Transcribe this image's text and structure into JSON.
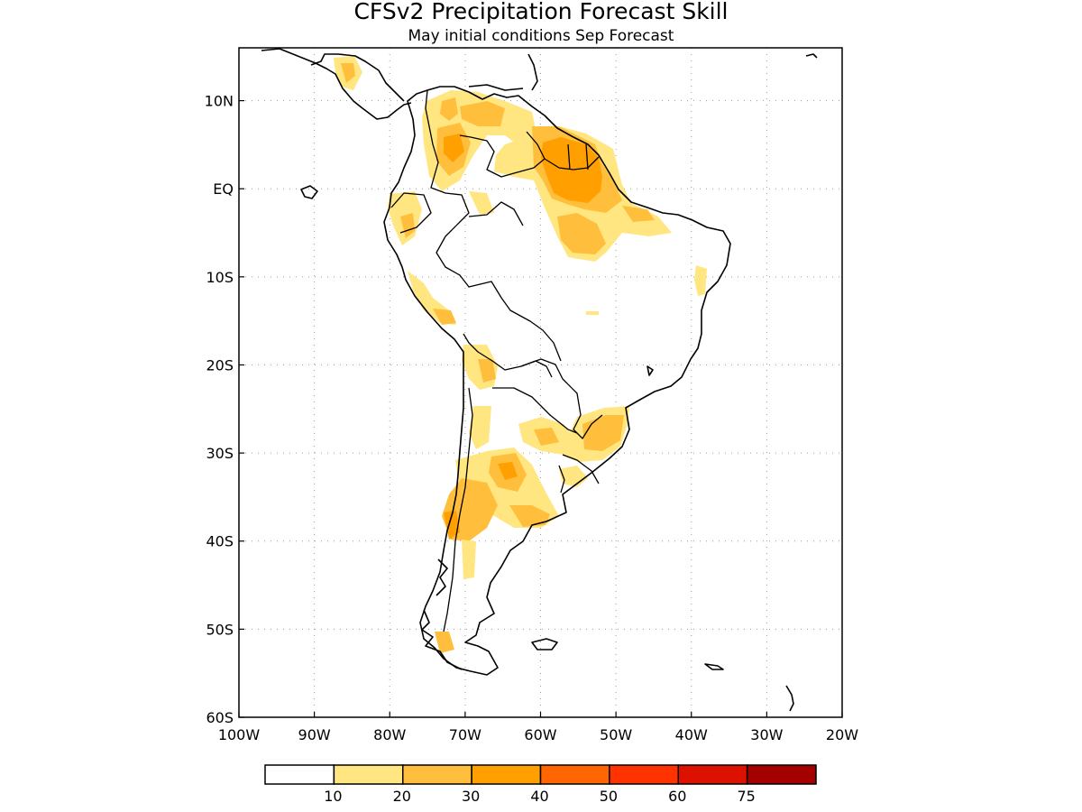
{
  "title": "CFSv2 Precipitation Forecast Skill",
  "subtitle": "May initial conditions  Sep Forecast",
  "map": {
    "lon_range": [
      -100,
      -20
    ],
    "lat_range": [
      -60,
      16
    ],
    "lat_ticks": [
      {
        "value": 10,
        "label": "10N"
      },
      {
        "value": 0,
        "label": "EQ"
      },
      {
        "value": -10,
        "label": "10S"
      },
      {
        "value": -20,
        "label": "20S"
      },
      {
        "value": -30,
        "label": "30S"
      },
      {
        "value": -40,
        "label": "40S"
      },
      {
        "value": -50,
        "label": "50S"
      },
      {
        "value": -60,
        "label": "60S"
      }
    ],
    "lon_ticks": [
      {
        "value": -100,
        "label": "100W"
      },
      {
        "value": -90,
        "label": "90W"
      },
      {
        "value": -80,
        "label": "80W"
      },
      {
        "value": -70,
        "label": "70W"
      },
      {
        "value": -60,
        "label": "60W"
      },
      {
        "value": -50,
        "label": "50W"
      },
      {
        "value": -40,
        "label": "40W"
      },
      {
        "value": -30,
        "label": "30W"
      },
      {
        "value": -20,
        "label": "20W"
      }
    ]
  },
  "colorbar": {
    "colors": [
      "#ffffff",
      "#ffe680",
      "#ffbe3c",
      "#ff9f00",
      "#ff6600",
      "#ff3300",
      "#dd1100",
      "#a50000"
    ],
    "labels": [
      "10",
      "20",
      "30",
      "40",
      "50",
      "60",
      "75"
    ]
  }
}
